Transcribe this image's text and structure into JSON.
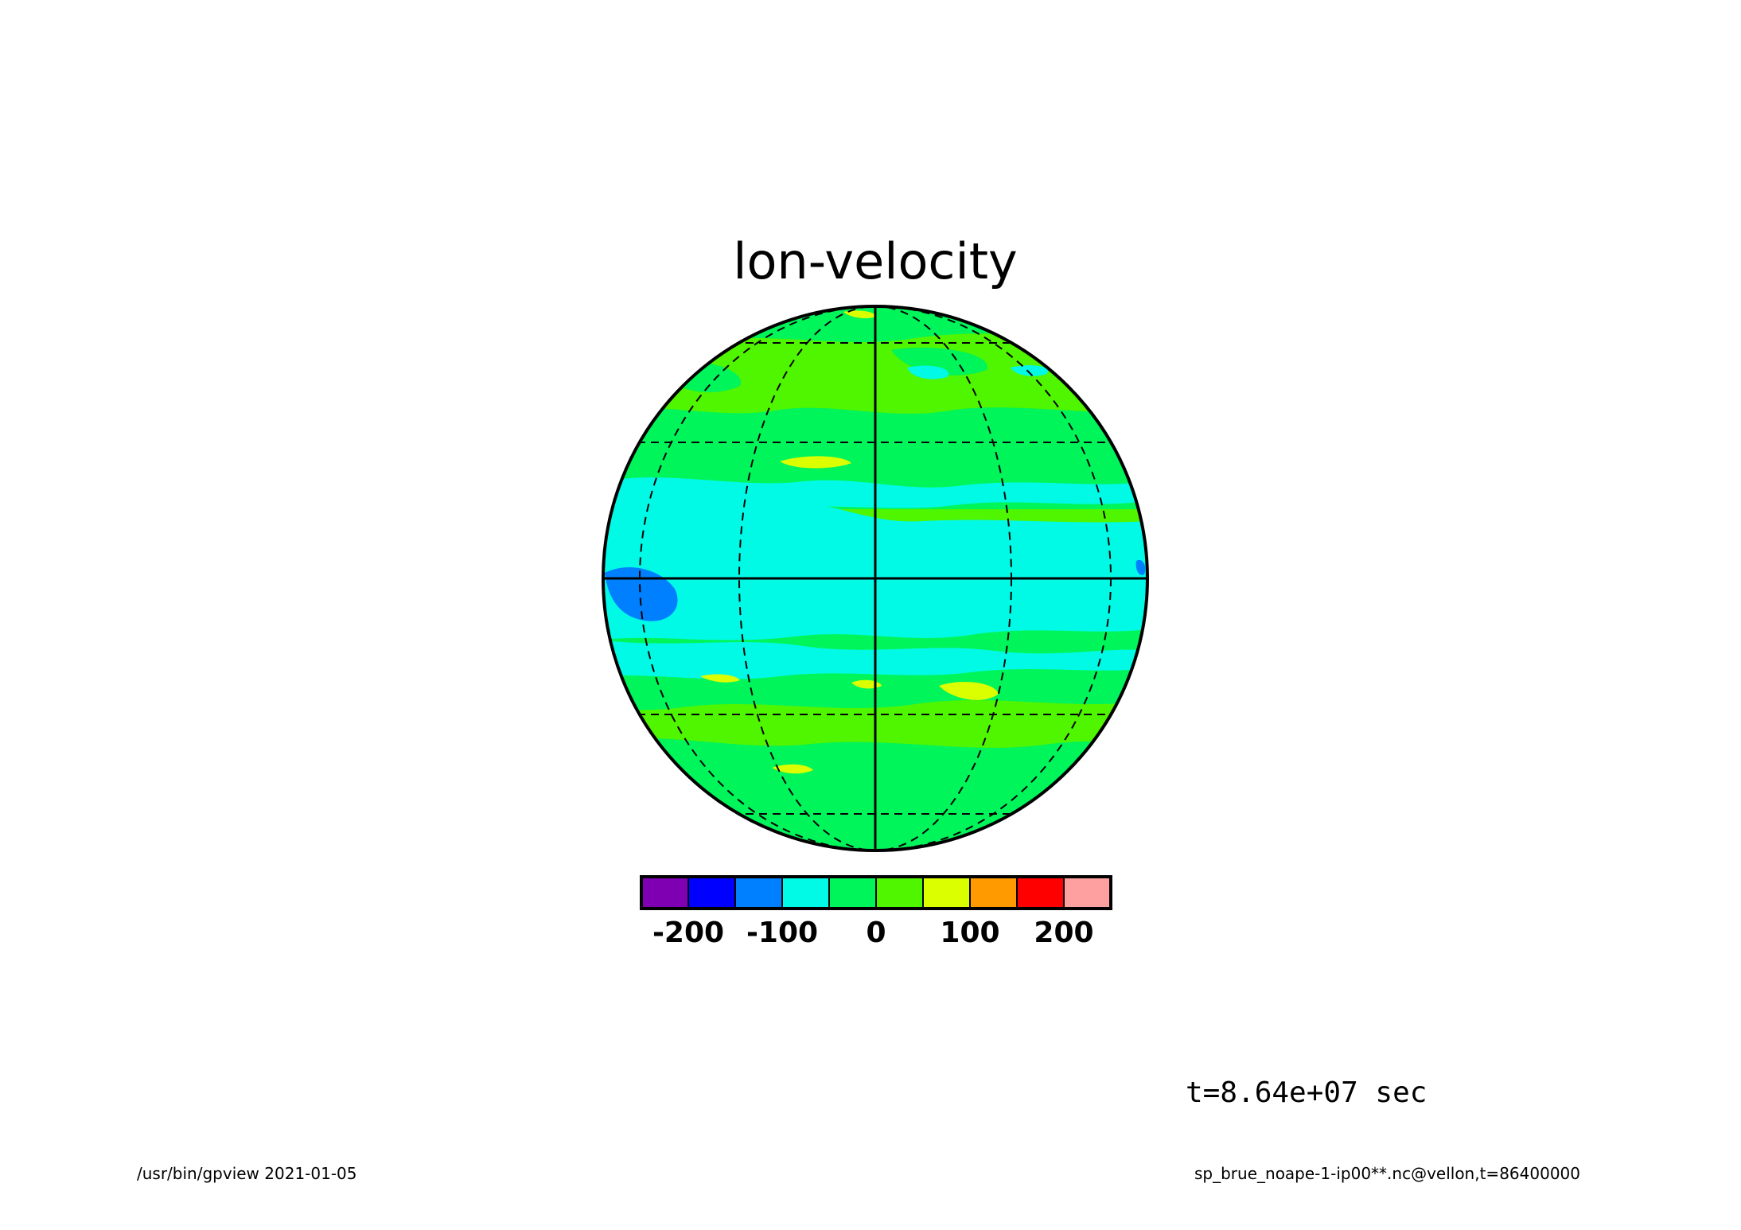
{
  "title": "lon-velocity",
  "time_label": "t=8.64e+07 sec",
  "footer_left": "/usr/bin/gpview  2021-01-05",
  "footer_right": "sp_brue_noape-1-ip00**.nc@vellon,t=86400000",
  "colorbar": {
    "colors": [
      "#7f00b2",
      "#0000ff",
      "#0080ff",
      "#00fae6",
      "#00f55a",
      "#50f500",
      "#dcff00",
      "#ff9a00",
      "#ff0000",
      "#ffa0a0"
    ],
    "ticks": [
      "-200",
      "-100",
      "0",
      "100",
      "200"
    ]
  },
  "map": {
    "projection": "orthographic",
    "graticule": "dashed",
    "background_colors": {
      "low": "#00fae6",
      "mid": "#00f55a",
      "high": "#50f500"
    }
  }
}
